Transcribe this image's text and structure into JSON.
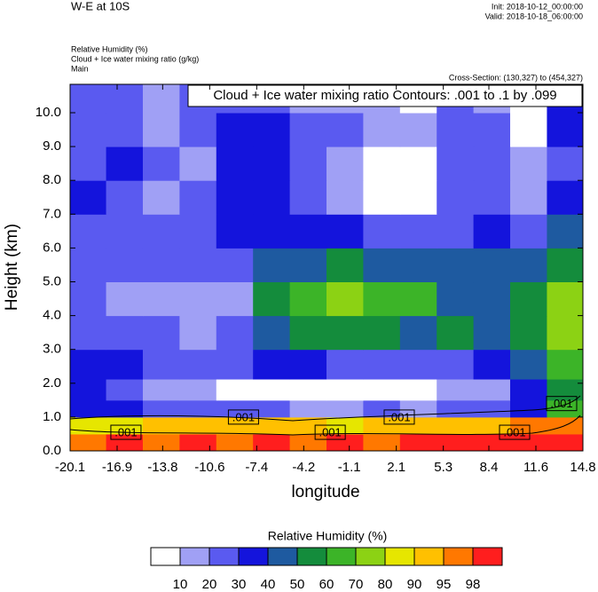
{
  "chart_data": {
    "type": "contour",
    "title": "W-E at 10S",
    "init": "Init: 2018-10-12_00:00:00",
    "valid": "Valid: 2018-10-18_06:00:00",
    "field_1": "Relative Humidity   (%)",
    "field_2": "Cloud + Ice water mixing ratio   (g/kg)",
    "field_3": "Main",
    "cross_section": "Cross-Section: (130,327) to (454,327)",
    "contour_info": "Cloud + Ice water mixing ratio Contours: .001 to .1 by .099",
    "ylabel": "Height (km)",
    "xlabel": "longitude",
    "colorbar_title": "Relative Humidity  (%)",
    "xlim": [
      -20.1,
      14.8
    ],
    "ylim": [
      0,
      10.84
    ],
    "xticks": [
      -20.1,
      -16.9,
      -13.8,
      -10.6,
      -7.4,
      -4.2,
      -1.1,
      2.1,
      5.3,
      8.4,
      11.6,
      14.8
    ],
    "yticks": [
      {
        "value": 0,
        "label": "0.0"
      },
      {
        "value": 1,
        "label": "1.0"
      },
      {
        "value": 2,
        "label": "2.0"
      },
      {
        "value": 3,
        "label": "3.0"
      },
      {
        "value": 4,
        "label": "4.0"
      },
      {
        "value": 5,
        "label": "5.0"
      },
      {
        "value": 6,
        "label": "6.0"
      },
      {
        "value": 7,
        "label": "7.0"
      },
      {
        "value": 8,
        "label": "8.0"
      },
      {
        "value": 9,
        "label": "9.0"
      },
      {
        "value": 10,
        "label": "10.0"
      }
    ],
    "levels": [
      10,
      20,
      30,
      40,
      50,
      60,
      70,
      80,
      90,
      95,
      98
    ],
    "colors": [
      "#ffffff",
      "#a0a0f5",
      "#5a5af0",
      "#1414dc",
      "#1e5aa0",
      "#148c3c",
      "#3cb428",
      "#8cd214",
      "#e6e600",
      "#ffc000",
      "#ff7800",
      "#ff1e1e"
    ],
    "grid": {
      "x": [
        -18.9,
        -16.4,
        -13.9,
        -11.4,
        -8.9,
        -6.4,
        -3.9,
        -1.4,
        1.1,
        3.6,
        6.1,
        8.6,
        11.1,
        13.6
      ],
      "y": [
        0.25,
        0.75,
        1.25,
        1.75,
        2.5,
        3.5,
        4.5,
        5.5,
        6.5,
        7.5,
        8.5,
        9.5,
        10.5
      ],
      "values": [
        [
          96,
          98,
          97,
          98,
          97,
          98,
          97,
          98,
          97,
          98,
          98,
          98,
          98,
          99
        ],
        [
          85,
          88,
          90,
          92,
          90,
          90,
          92,
          88,
          90,
          90,
          92,
          93,
          95,
          97
        ],
        [
          35,
          30,
          25,
          25,
          20,
          20,
          15,
          15,
          20,
          18,
          22,
          25,
          35,
          60
        ],
        [
          30,
          22,
          15,
          12,
          8,
          8,
          8,
          8,
          8,
          8,
          12,
          18,
          30,
          55
        ],
        [
          35,
          30,
          25,
          25,
          22,
          30,
          30,
          25,
          22,
          22,
          25,
          30,
          40,
          60
        ],
        [
          25,
          22,
          20,
          18,
          22,
          45,
          55,
          55,
          50,
          45,
          50,
          45,
          55,
          75
        ],
        [
          20,
          15,
          12,
          18,
          18,
          55,
          65,
          70,
          68,
          60,
          45,
          45,
          55,
          70
        ],
        [
          22,
          25,
          20,
          22,
          28,
          40,
          48,
          50,
          48,
          45,
          45,
          40,
          40,
          55
        ],
        [
          25,
          28,
          25,
          28,
          30,
          35,
          35,
          30,
          25,
          20,
          25,
          30,
          28,
          40
        ],
        [
          30,
          28,
          18,
          20,
          35,
          30,
          25,
          15,
          8,
          5,
          20,
          25,
          15,
          30
        ],
        [
          25,
          30,
          20,
          15,
          35,
          35,
          22,
          12,
          5,
          5,
          20,
          22,
          10,
          25
        ],
        [
          20,
          25,
          18,
          20,
          30,
          35,
          25,
          20,
          15,
          10,
          25,
          20,
          8,
          30
        ],
        [
          25,
          20,
          15,
          20,
          25,
          20,
          15,
          15,
          10,
          8,
          20,
          15,
          5,
          30
        ]
      ]
    },
    "contour_labels": [
      {
        "text": ".001",
        "x": -16.3,
        "y": 0.55
      },
      {
        "text": ".001",
        "x": -8.3,
        "y": 1.0
      },
      {
        "text": ".001",
        "x": -2.4,
        "y": 0.55
      },
      {
        "text": ".001",
        "x": 2.3,
        "y": 1.0
      },
      {
        "text": ".001",
        "x": 10.15,
        "y": 0.55
      },
      {
        "text": ".001",
        "x": 13.35,
        "y": 1.4
      }
    ]
  }
}
